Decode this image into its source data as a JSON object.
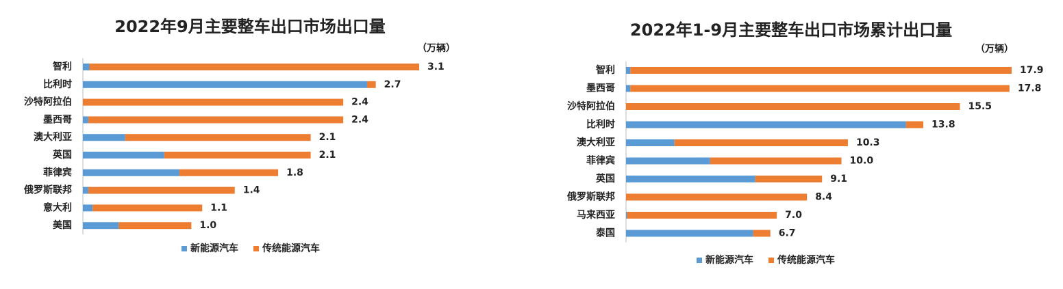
{
  "chart_data": [
    {
      "type": "stacked-bar-horizontal",
      "title": "2022年9月主要整车出口市场出口量",
      "unit": "（万辆）",
      "categories": [
        "智利",
        "比利时",
        "沙特阿拉伯",
        "墨西哥",
        "澳大利亚",
        "英国",
        "菲律宾",
        "俄罗斯联邦",
        "意大利",
        "美国"
      ],
      "series": [
        {
          "name": "新能源汽车",
          "color": "#5b9bd5",
          "values": [
            0.06,
            2.62,
            0,
            0.05,
            0.39,
            0.75,
            0.89,
            0.05,
            0.09,
            0.33
          ]
        },
        {
          "name": "传统能源汽车",
          "color": "#ed7d31",
          "values": [
            3.04,
            0.08,
            2.4,
            2.35,
            1.71,
            1.35,
            0.91,
            1.35,
            1.01,
            0.67
          ]
        }
      ],
      "total_labels": [
        "3.1",
        "2.7",
        "2.4",
        "2.4",
        "2.1",
        "2.1",
        "1.8",
        "1.4",
        "1.1",
        "1.0"
      ],
      "xlim": [
        0,
        3.1
      ],
      "legend": "bottom"
    },
    {
      "type": "stacked-bar-horizontal",
      "title": "2022年1-9月主要整车出口市场累计出口量",
      "unit": "（万辆）",
      "categories": [
        "智利",
        "墨西哥",
        "沙特阿拉伯",
        "比利时",
        "澳大利亚",
        "菲律宾",
        "英国",
        "俄罗斯联邦",
        "马来西亚",
        "泰国"
      ],
      "series": [
        {
          "name": "新能源汽车",
          "color": "#5b9bd5",
          "values": [
            0.2,
            0.2,
            0,
            13.0,
            2.25,
            3.9,
            6.0,
            0,
            0.05,
            5.9
          ]
        },
        {
          "name": "传统能源汽车",
          "color": "#ed7d31",
          "values": [
            17.7,
            17.6,
            15.5,
            0.8,
            8.05,
            6.1,
            3.1,
            8.4,
            6.95,
            0.8
          ]
        }
      ],
      "total_labels": [
        "17.9",
        "17.8",
        "15.5",
        "13.8",
        "10.3",
        "10.0",
        "9.1",
        "8.4",
        "7.0",
        "6.7"
      ],
      "xlim": [
        0,
        17.9
      ],
      "legend": "bottom"
    }
  ]
}
